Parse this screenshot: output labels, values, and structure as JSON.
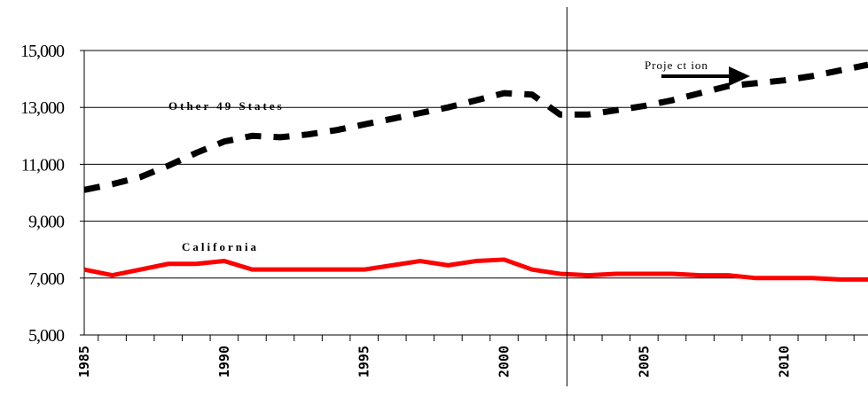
{
  "chart_data": {
    "type": "line",
    "x": [
      1985,
      1986,
      1987,
      1988,
      1989,
      1990,
      1991,
      1992,
      1993,
      1994,
      1995,
      1996,
      1997,
      1998,
      1999,
      2000,
      2001,
      2002,
      2003,
      2004,
      2005,
      2006,
      2007,
      2008,
      2009,
      2010,
      2011,
      2012,
      2013
    ],
    "series": [
      {
        "name": "Other 49 States",
        "style": "dashed",
        "color": "#000000",
        "values": [
          10100,
          10300,
          10550,
          10950,
          11400,
          11800,
          12000,
          11950,
          12050,
          12200,
          12400,
          12600,
          12800,
          13000,
          13250,
          13500,
          13450,
          12750,
          12750,
          12900,
          13050,
          13250,
          13500,
          13750,
          13850,
          13950,
          14100,
          14300,
          14500
        ]
      },
      {
        "name": "California",
        "style": "solid",
        "color": "#ff0000",
        "values": [
          7300,
          7100,
          7300,
          7500,
          7500,
          7600,
          7300,
          7300,
          7300,
          7300,
          7300,
          7450,
          7600,
          7450,
          7600,
          7650,
          7300,
          7150,
          7100,
          7150,
          7150,
          7150,
          7100,
          7100,
          7000,
          7000,
          7000,
          6950,
          6950
        ]
      }
    ],
    "ylim": [
      5000,
      15000
    ],
    "yticks": [
      "5,000",
      "7,000",
      "9,000",
      "11,000",
      "13,000",
      "15,000"
    ],
    "xticks": [
      "1985",
      "1990",
      "1995",
      "2000",
      "2005",
      "2010"
    ],
    "projection_start": 2002.25,
    "annotation": "Proje ct ion",
    "grid": true
  }
}
